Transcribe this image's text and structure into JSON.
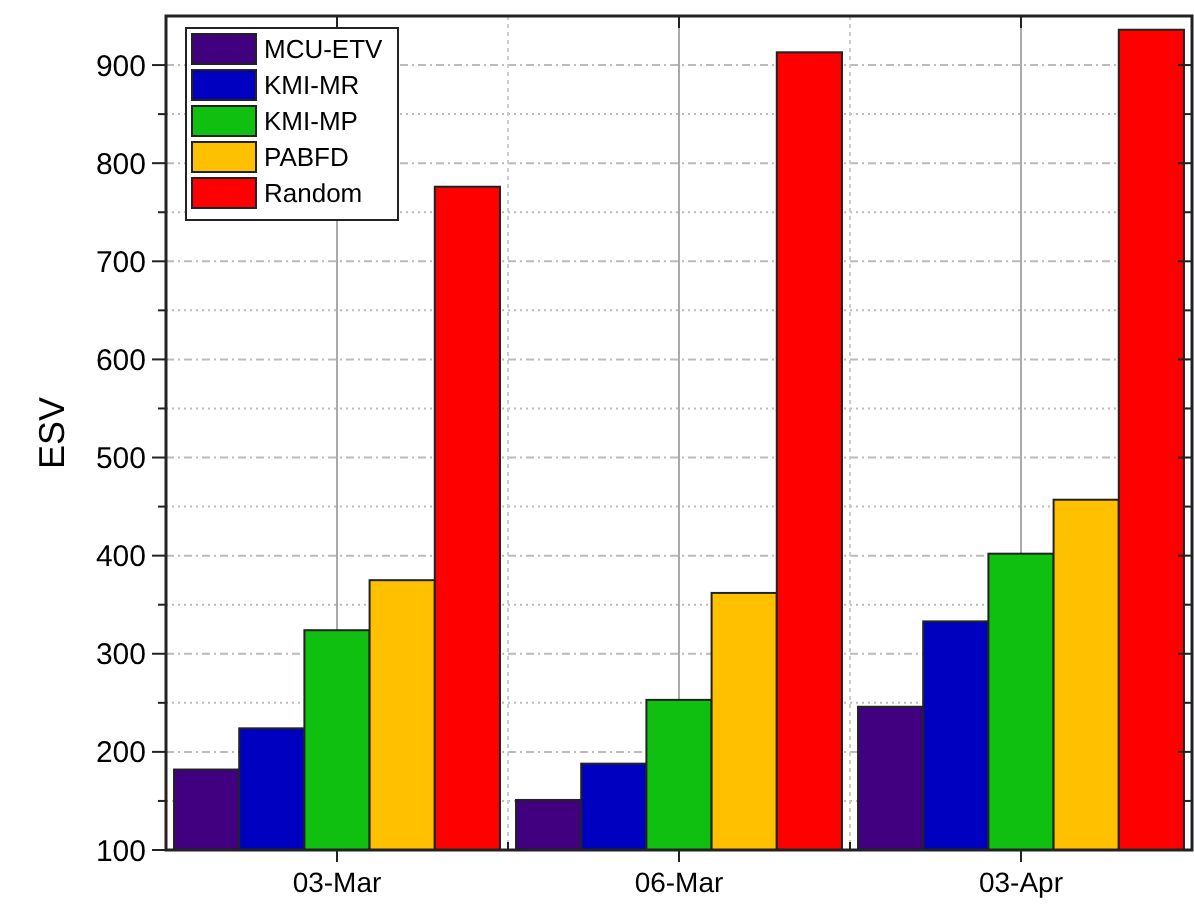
{
  "chart_data": {
    "type": "bar",
    "ylabel": "ESV",
    "categories": [
      "03-Mar",
      "06-Mar",
      "03-Apr"
    ],
    "series": [
      {
        "name": "MCU-ETV",
        "color": "#400080",
        "values": [
          182,
          151,
          246
        ]
      },
      {
        "name": "KMI-MR",
        "color": "#0000c0",
        "values": [
          224,
          188,
          333
        ]
      },
      {
        "name": "KMI-MP",
        "color": "#10c010",
        "values": [
          324,
          253,
          402
        ]
      },
      {
        "name": "PABFD",
        "color": "#ffc000",
        "values": [
          375,
          362,
          457
        ]
      },
      {
        "name": "Random",
        "color": "#ff0000",
        "values": [
          776,
          913,
          936
        ]
      }
    ],
    "ylim": [
      100,
      950
    ],
    "yticks": [
      100,
      {
        "value": 150,
        "label": null
      },
      200,
      {
        "value": 250,
        "label": null
      },
      300,
      {
        "value": 350,
        "label": null
      },
      400,
      {
        "value": 450,
        "label": null
      },
      500,
      {
        "value": 550,
        "label": null
      },
      600,
      {
        "value": 650,
        "label": null
      },
      700,
      {
        "value": 750,
        "label": null
      },
      800,
      {
        "value": 850,
        "label": null
      },
      900
    ],
    "grid": true,
    "legend": "top left"
  }
}
